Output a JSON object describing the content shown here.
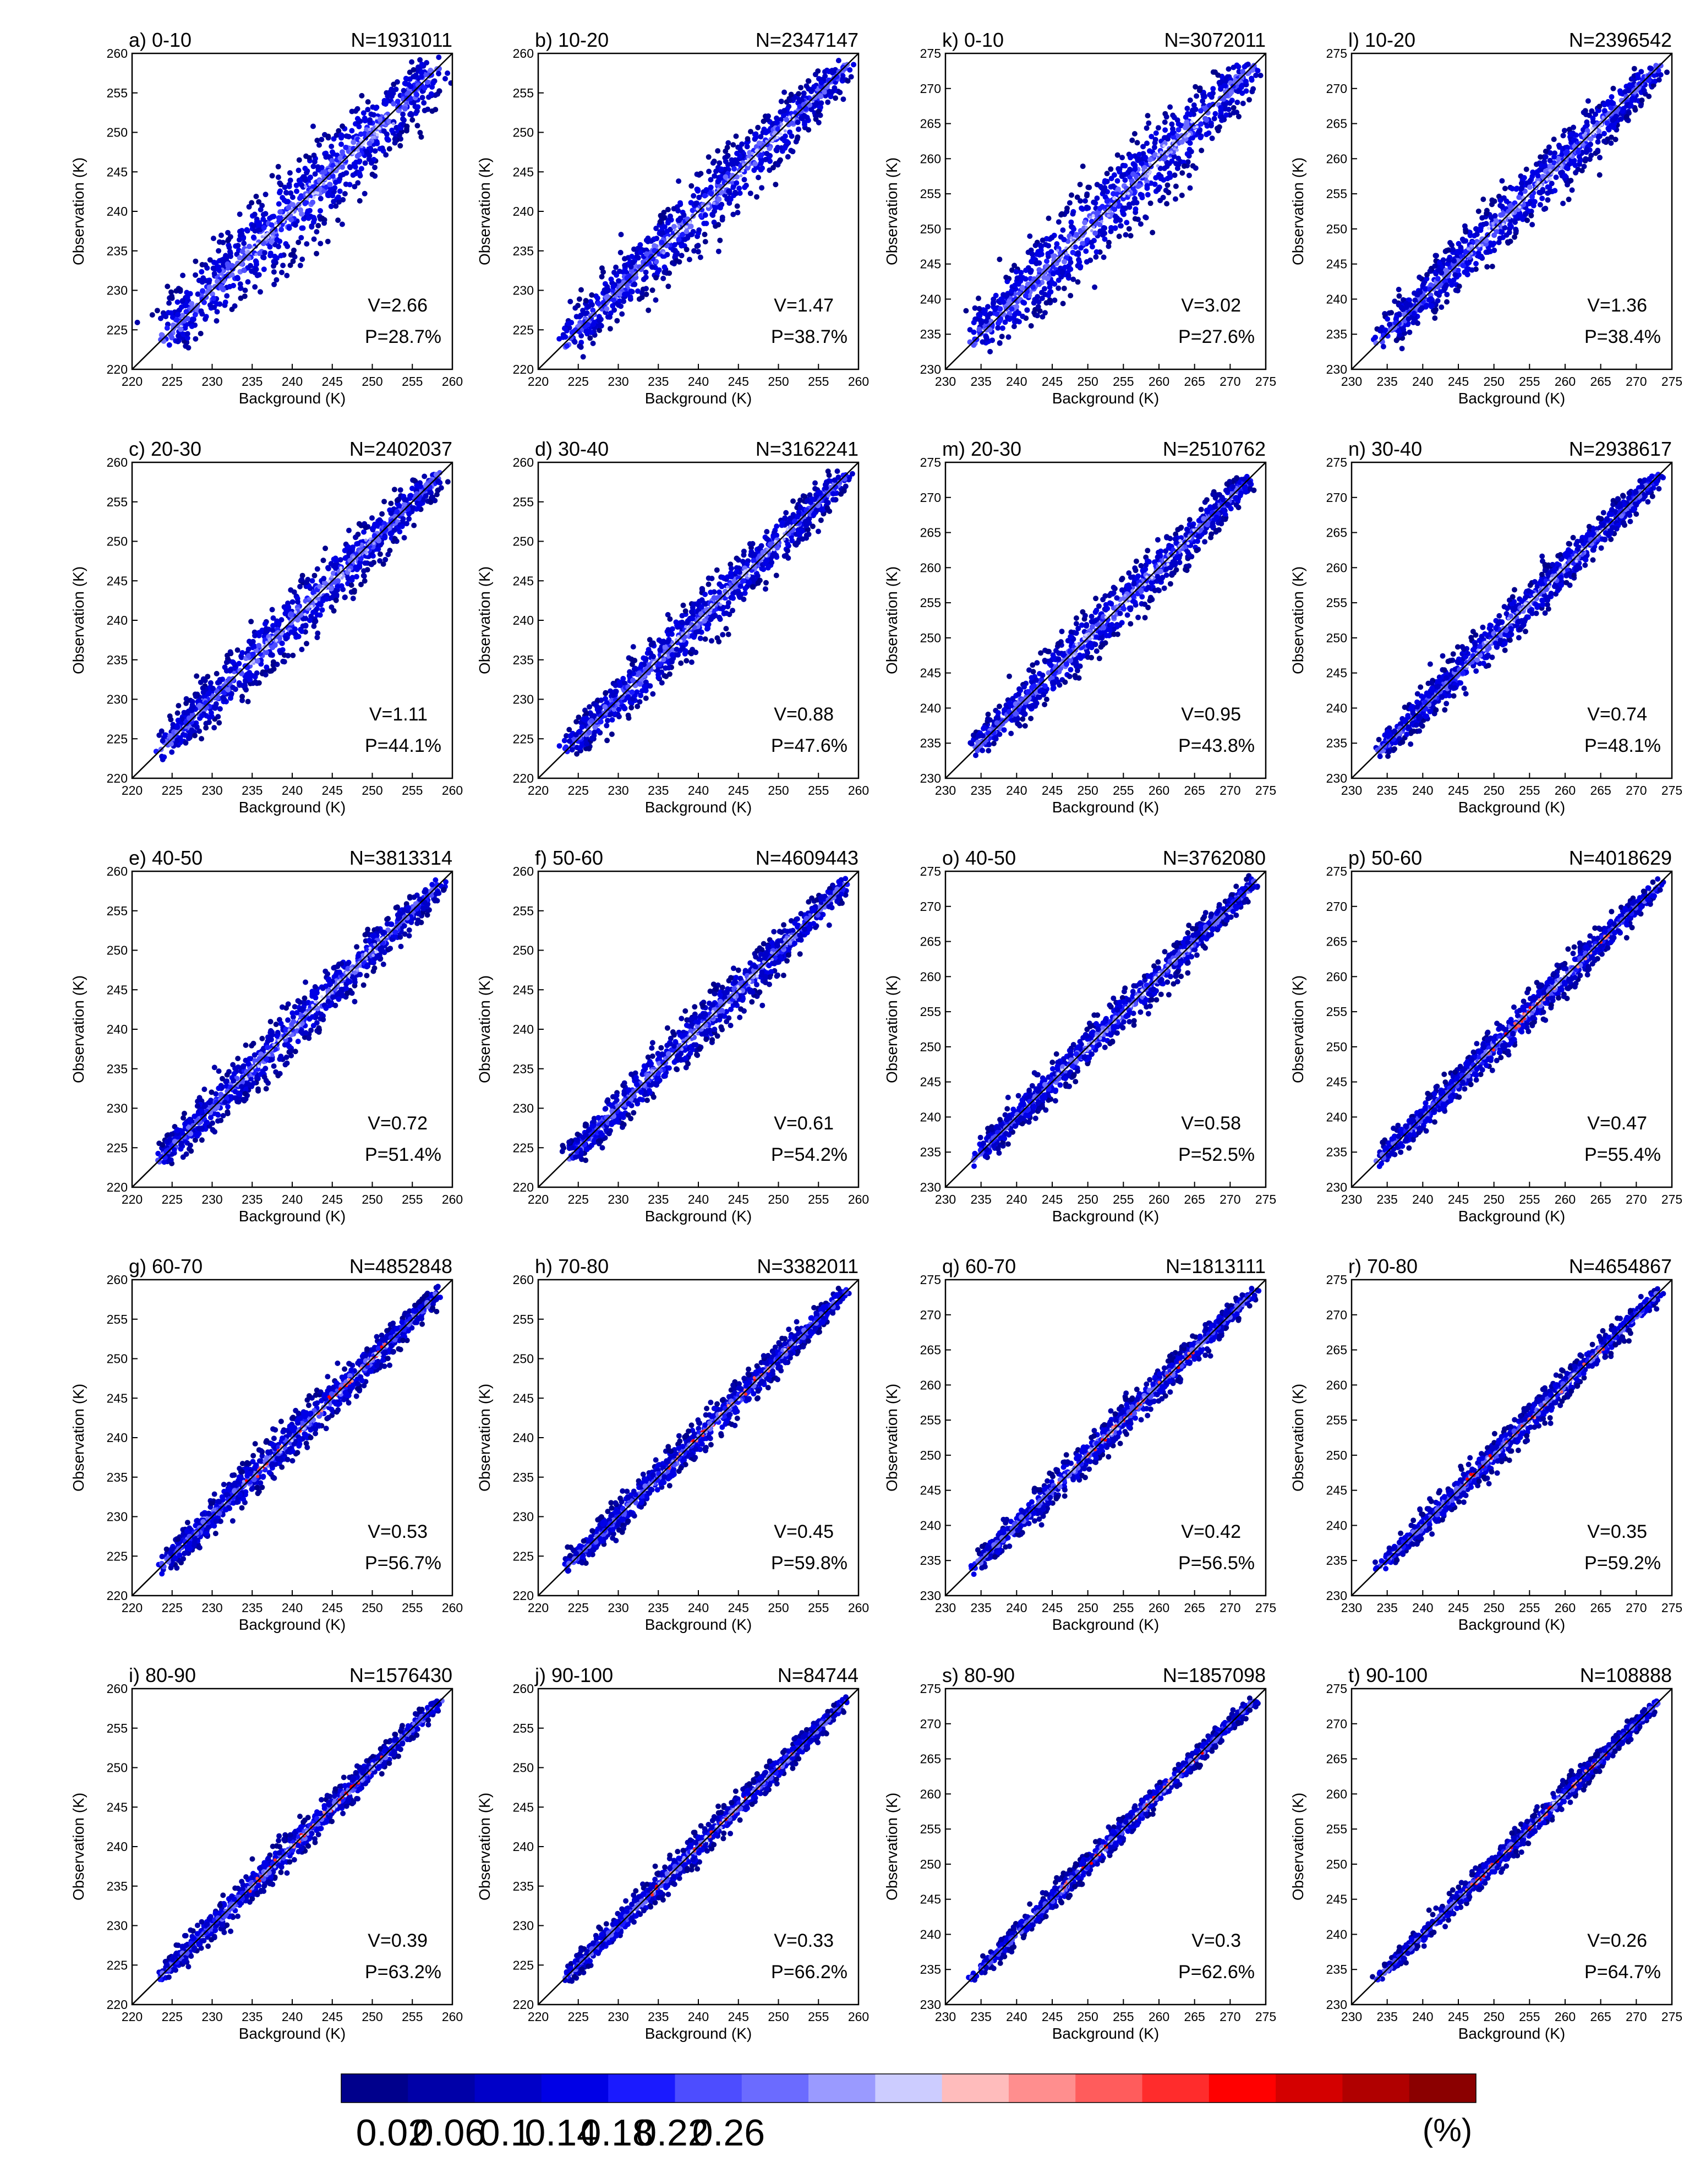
{
  "colors": {
    "background": "#ffffff",
    "diagonal": "#000000",
    "colormap": [
      "#00008c",
      "#0000a8",
      "#0000c8",
      "#0000e6",
      "#1a1aff",
      "#4d4dff",
      "#6b6bff",
      "#9a9aff",
      "#ccccff",
      "#ffbcbc",
      "#ff8e8e",
      "#ff5c5c",
      "#ff2c2c",
      "#ff0000",
      "#d40000",
      "#b00000",
      "#8b0000"
    ]
  },
  "colorbar": {
    "labels": [
      "0.02",
      "0.06",
      "0.1",
      "0.14",
      "0.18",
      "0.22",
      "0.26"
    ],
    "unit": "(%)"
  },
  "chart_data": [
    {
      "type": "scatter",
      "panel": "a) 0-10",
      "n": "N=1931011",
      "v": "V=2.66",
      "p": "P=28.7%",
      "xlabel": "Background (K)",
      "ylabel": "Observation (K)",
      "xlim": [
        220,
        260
      ],
      "ylim": [
        220,
        260
      ],
      "ticks": [
        "220",
        "225",
        "230",
        "235",
        "240",
        "245",
        "250",
        "255",
        "260"
      ],
      "spread": 3.2
    },
    {
      "type": "scatter",
      "panel": "b) 10-20",
      "n": "N=2347147",
      "v": "V=1.47",
      "p": "P=38.7%",
      "xlabel": "Background (K)",
      "ylabel": "Observation (K)",
      "xlim": [
        220,
        260
      ],
      "ylim": [
        220,
        260
      ],
      "ticks": [
        "220",
        "225",
        "230",
        "235",
        "240",
        "245",
        "250",
        "255",
        "260"
      ],
      "spread": 2.4
    },
    {
      "type": "scatter",
      "panel": "k) 0-10",
      "n": "N=3072011",
      "v": "V=3.02",
      "p": "P=27.6%",
      "xlabel": "Background (K)",
      "ylabel": "Observation (K)",
      "xlim": [
        230,
        275
      ],
      "ylim": [
        230,
        275
      ],
      "ticks": [
        "230",
        "235",
        "240",
        "245",
        "250",
        "255",
        "260",
        "265",
        "270",
        "275"
      ],
      "spread": 3.4
    },
    {
      "type": "scatter",
      "panel": "l) 10-20",
      "n": "N=2396542",
      "v": "V=1.36",
      "p": "P=38.4%",
      "xlabel": "Background (K)",
      "ylabel": "Observation (K)",
      "xlim": [
        230,
        275
      ],
      "ylim": [
        230,
        275
      ],
      "ticks": [
        "230",
        "235",
        "240",
        "245",
        "250",
        "255",
        "260",
        "265",
        "270",
        "275"
      ],
      "spread": 2.3
    },
    {
      "type": "scatter",
      "panel": "c) 20-30",
      "n": "N=2402037",
      "v": "V=1.11",
      "p": "P=44.1%",
      "xlabel": "Background (K)",
      "ylabel": "Observation (K)",
      "xlim": [
        220,
        260
      ],
      "ylim": [
        220,
        260
      ],
      "ticks": [
        "220",
        "225",
        "230",
        "235",
        "240",
        "245",
        "250",
        "255",
        "260"
      ],
      "spread": 2.1
    },
    {
      "type": "scatter",
      "panel": "d) 30-40",
      "n": "N=3162241",
      "v": "V=0.88",
      "p": "P=47.6%",
      "xlabel": "Background (K)",
      "ylabel": "Observation (K)",
      "xlim": [
        220,
        260
      ],
      "ylim": [
        220,
        260
      ],
      "ticks": [
        "220",
        "225",
        "230",
        "235",
        "240",
        "245",
        "250",
        "255",
        "260"
      ],
      "spread": 1.9
    },
    {
      "type": "scatter",
      "panel": "m) 20-30",
      "n": "N=2510762",
      "v": "V=0.95",
      "p": "P=43.8%",
      "xlabel": "Background (K)",
      "ylabel": "Observation (K)",
      "xlim": [
        230,
        275
      ],
      "ylim": [
        230,
        275
      ],
      "ticks": [
        "230",
        "235",
        "240",
        "245",
        "250",
        "255",
        "260",
        "265",
        "270",
        "275"
      ],
      "spread": 2.0
    },
    {
      "type": "scatter",
      "panel": "n) 30-40",
      "n": "N=2938617",
      "v": "V=0.74",
      "p": "P=48.1%",
      "xlabel": "Background (K)",
      "ylabel": "Observation (K)",
      "xlim": [
        230,
        275
      ],
      "ylim": [
        230,
        275
      ],
      "ticks": [
        "230",
        "235",
        "240",
        "245",
        "250",
        "255",
        "260",
        "265",
        "270",
        "275"
      ],
      "spread": 1.7
    },
    {
      "type": "scatter",
      "panel": "e) 40-50",
      "n": "N=3813314",
      "v": "V=0.72",
      "p": "P=51.4%",
      "xlabel": "Background (K)",
      "ylabel": "Observation (K)",
      "xlim": [
        220,
        260
      ],
      "ylim": [
        220,
        260
      ],
      "ticks": [
        "220",
        "225",
        "230",
        "235",
        "240",
        "245",
        "250",
        "255",
        "260"
      ],
      "spread": 1.7
    },
    {
      "type": "scatter",
      "panel": "f) 50-60",
      "n": "N=4609443",
      "v": "V=0.61",
      "p": "P=54.2%",
      "xlabel": "Background (K)",
      "ylabel": "Observation (K)",
      "xlim": [
        220,
        260
      ],
      "ylim": [
        220,
        260
      ],
      "ticks": [
        "220",
        "225",
        "230",
        "235",
        "240",
        "245",
        "250",
        "255",
        "260"
      ],
      "spread": 1.6
    },
    {
      "type": "scatter",
      "panel": "o) 40-50",
      "n": "N=3762080",
      "v": "V=0.58",
      "p": "P=52.5%",
      "xlabel": "Background (K)",
      "ylabel": "Observation (K)",
      "xlim": [
        230,
        275
      ],
      "ylim": [
        230,
        275
      ],
      "ticks": [
        "230",
        "235",
        "240",
        "245",
        "250",
        "255",
        "260",
        "265",
        "270",
        "275"
      ],
      "spread": 1.5
    },
    {
      "type": "scatter",
      "panel": "p) 50-60",
      "n": "N=4018629",
      "v": "V=0.47",
      "p": "P=55.4%",
      "xlabel": "Background (K)",
      "ylabel": "Observation (K)",
      "xlim": [
        230,
        275
      ],
      "ylim": [
        230,
        275
      ],
      "ticks": [
        "230",
        "235",
        "240",
        "245",
        "250",
        "255",
        "260",
        "265",
        "270",
        "275"
      ],
      "spread": 1.4
    },
    {
      "type": "scatter",
      "panel": "g) 60-70",
      "n": "N=4852848",
      "v": "V=0.53",
      "p": "P=56.7%",
      "xlabel": "Background (K)",
      "ylabel": "Observation (K)",
      "xlim": [
        220,
        260
      ],
      "ylim": [
        220,
        260
      ],
      "ticks": [
        "220",
        "225",
        "230",
        "235",
        "240",
        "245",
        "250",
        "255",
        "260"
      ],
      "spread": 1.4
    },
    {
      "type": "scatter",
      "panel": "h) 70-80",
      "n": "N=3382011",
      "v": "V=0.45",
      "p": "P=59.8%",
      "xlabel": "Background (K)",
      "ylabel": "Observation (K)",
      "xlim": [
        220,
        260
      ],
      "ylim": [
        220,
        260
      ],
      "ticks": [
        "220",
        "225",
        "230",
        "235",
        "240",
        "245",
        "250",
        "255",
        "260"
      ],
      "spread": 1.2
    },
    {
      "type": "scatter",
      "panel": "q) 60-70",
      "n": "N=1813111",
      "v": "V=0.42",
      "p": "P=56.5%",
      "xlabel": "Background (K)",
      "ylabel": "Observation (K)",
      "xlim": [
        230,
        275
      ],
      "ylim": [
        230,
        275
      ],
      "ticks": [
        "230",
        "235",
        "240",
        "245",
        "250",
        "255",
        "260",
        "265",
        "270",
        "275"
      ],
      "spread": 1.3
    },
    {
      "type": "scatter",
      "panel": "r) 70-80",
      "n": "N=4654867",
      "v": "V=0.35",
      "p": "P=59.2%",
      "xlabel": "Background (K)",
      "ylabel": "Observation (K)",
      "xlim": [
        230,
        275
      ],
      "ylim": [
        230,
        275
      ],
      "ticks": [
        "230",
        "235",
        "240",
        "245",
        "250",
        "255",
        "260",
        "265",
        "270",
        "275"
      ],
      "spread": 1.2
    },
    {
      "type": "scatter",
      "panel": "i) 80-90",
      "n": "N=1576430",
      "v": "V=0.39",
      "p": "P=63.2%",
      "xlabel": "Background (K)",
      "ylabel": "Observation (K)",
      "xlim": [
        220,
        260
      ],
      "ylim": [
        220,
        260
      ],
      "ticks": [
        "220",
        "225",
        "230",
        "235",
        "240",
        "245",
        "250",
        "255",
        "260"
      ],
      "spread": 1.1
    },
    {
      "type": "scatter",
      "panel": "j) 90-100",
      "n": "N=84744",
      "v": "V=0.33",
      "p": "P=66.2%",
      "xlabel": "Background (K)",
      "ylabel": "Observation (K)",
      "xlim": [
        220,
        260
      ],
      "ylim": [
        220,
        260
      ],
      "ticks": [
        "220",
        "225",
        "230",
        "235",
        "240",
        "245",
        "250",
        "255",
        "260"
      ],
      "spread": 1.0
    },
    {
      "type": "scatter",
      "panel": "s) 80-90",
      "n": "N=1857098",
      "v": "V=0.3",
      "p": "P=62.6%",
      "xlabel": "Background (K)",
      "ylabel": "Observation (K)",
      "xlim": [
        230,
        275
      ],
      "ylim": [
        230,
        275
      ],
      "ticks": [
        "230",
        "235",
        "240",
        "245",
        "250",
        "255",
        "260",
        "265",
        "270",
        "275"
      ],
      "spread": 1.0
    },
    {
      "type": "scatter",
      "panel": "t) 90-100",
      "n": "N=108888",
      "v": "V=0.26",
      "p": "P=64.7%",
      "xlabel": "Background (K)",
      "ylabel": "Observation (K)",
      "xlim": [
        230,
        275
      ],
      "ylim": [
        230,
        275
      ],
      "ticks": [
        "230",
        "235",
        "240",
        "245",
        "250",
        "255",
        "260",
        "265",
        "270",
        "275"
      ],
      "spread": 0.9
    }
  ]
}
